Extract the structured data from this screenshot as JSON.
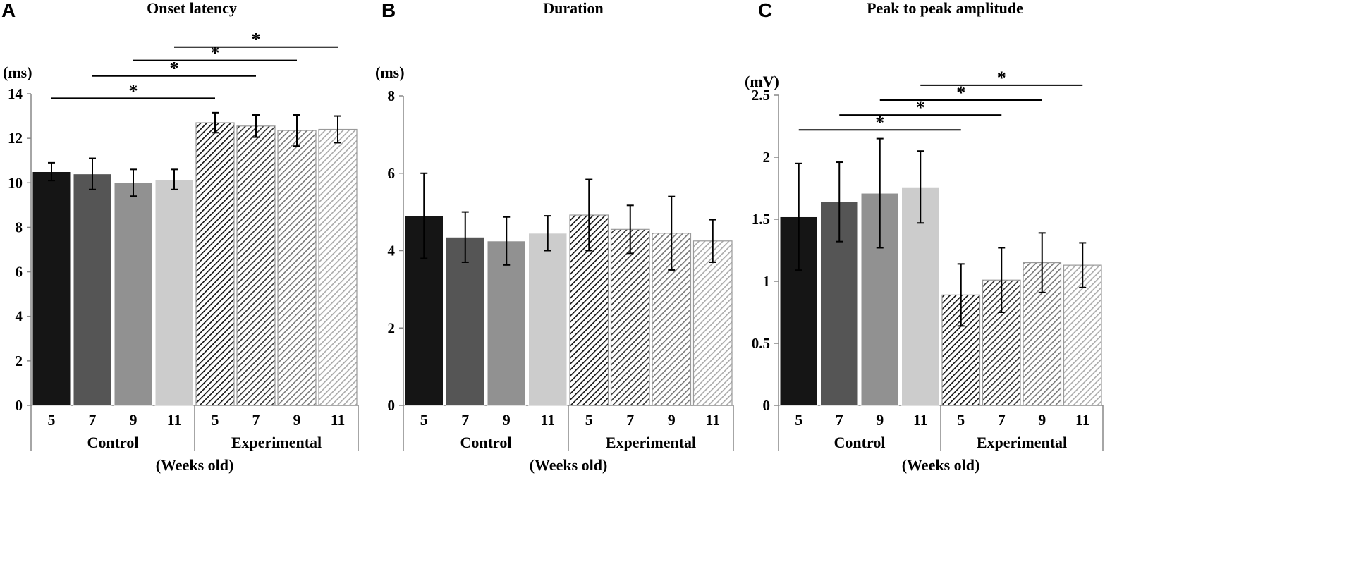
{
  "colors": {
    "control": [
      "#151515",
      "#555555",
      "#919191",
      "#cccccc"
    ],
    "hatch_stroke": [
      "#111111",
      "#333333",
      "#777777",
      "#aaaaaa"
    ],
    "axis": "#888888",
    "ink": "#000000"
  },
  "chart_data": [
    {
      "type": "bar",
      "panel_label": "A",
      "title": "Onset latency",
      "ylabel": "(ms)",
      "xlabel": "(Weeks old)",
      "ylim": [
        0,
        14
      ],
      "yticks": [
        "0",
        "2",
        "4",
        "6",
        "8",
        "10",
        "12",
        "14"
      ],
      "groups": [
        "Control",
        "Experimental"
      ],
      "categories": [
        "5",
        "7",
        "9",
        "11",
        "5",
        "7",
        "9",
        "11"
      ],
      "values": [
        10.5,
        10.4,
        10.0,
        10.15,
        12.7,
        12.55,
        12.35,
        12.4
      ],
      "errors": [
        0.4,
        0.7,
        0.6,
        0.45,
        0.45,
        0.5,
        0.7,
        0.6
      ],
      "significance": [
        {
          "from": 0,
          "to": 4,
          "y": 13.8,
          "label": "*"
        },
        {
          "from": 1,
          "to": 5,
          "y": 14.8,
          "label": "*"
        },
        {
          "from": 2,
          "to": 6,
          "y": 15.5,
          "label": "*"
        },
        {
          "from": 3,
          "to": 7,
          "y": 16.1,
          "label": "*"
        }
      ]
    },
    {
      "type": "bar",
      "panel_label": "B",
      "title": "Duration",
      "ylabel": "(ms)",
      "xlabel": "(Weeks old)",
      "ylim": [
        0,
        8
      ],
      "yticks": [
        "0",
        "2",
        "4",
        "6",
        "8"
      ],
      "groups": [
        "Control",
        "Experimental"
      ],
      "categories": [
        "5",
        "7",
        "9",
        "11",
        "5",
        "7",
        "9",
        "11"
      ],
      "values": [
        4.9,
        4.35,
        4.25,
        4.45,
        4.92,
        4.55,
        4.45,
        4.25
      ],
      "errors": [
        1.1,
        0.65,
        0.62,
        0.45,
        0.92,
        0.62,
        0.95,
        0.55
      ],
      "significance": []
    },
    {
      "type": "bar",
      "panel_label": "C",
      "title": "Peak to peak amplitude",
      "ylabel": "(mV)",
      "xlabel": "(Weeks old)",
      "ylim": [
        0,
        2.5
      ],
      "yticks": [
        "0",
        "0.5",
        "1",
        "1.5",
        "2",
        "2.5"
      ],
      "groups": [
        "Control",
        "Experimental"
      ],
      "categories": [
        "5",
        "7",
        "9",
        "11",
        "5",
        "7",
        "9",
        "11"
      ],
      "values": [
        1.52,
        1.64,
        1.71,
        1.76,
        0.89,
        1.01,
        1.15,
        1.13
      ],
      "errors": [
        0.43,
        0.32,
        0.44,
        0.29,
        0.25,
        0.26,
        0.24,
        0.18
      ],
      "significance": [
        {
          "from": 0,
          "to": 4,
          "y": 2.22,
          "label": "*"
        },
        {
          "from": 1,
          "to": 5,
          "y": 2.34,
          "label": "*"
        },
        {
          "from": 2,
          "to": 6,
          "y": 2.46,
          "label": "*"
        },
        {
          "from": 3,
          "to": 7,
          "y": 2.58,
          "label": "*"
        }
      ]
    }
  ]
}
